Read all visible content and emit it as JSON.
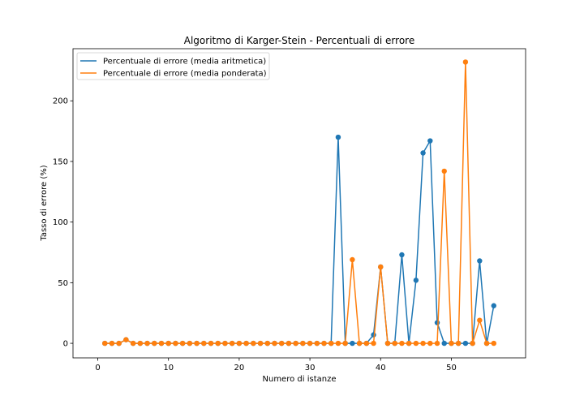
{
  "chart_data": {
    "type": "line",
    "title": "Algoritmo di Karger-Stein - Percentuali di errore",
    "xlabel": "Numero di istanze",
    "ylabel": "Tasso di errore (%)",
    "xlim": [
      -3.5,
      60.5
    ],
    "ylim": [
      -12,
      243
    ],
    "xticks": [
      0,
      10,
      20,
      30,
      40,
      50
    ],
    "yticks": [
      0,
      50,
      100,
      150,
      200
    ],
    "grid": false,
    "legend_position": "top-left",
    "x": [
      1,
      2,
      3,
      4,
      5,
      6,
      7,
      8,
      9,
      10,
      11,
      12,
      13,
      14,
      15,
      16,
      17,
      18,
      19,
      20,
      21,
      22,
      23,
      24,
      25,
      26,
      27,
      28,
      29,
      30,
      31,
      32,
      33,
      34,
      35,
      36,
      37,
      38,
      39,
      40,
      41,
      42,
      43,
      44,
      45,
      46,
      47,
      48,
      49,
      50,
      51,
      52,
      53,
      54,
      55,
      56
    ],
    "series": [
      {
        "name": "Percentuale di errore (media aritmetica)",
        "color": "#1f77b4",
        "values": [
          0,
          0,
          0,
          3,
          0,
          0,
          0,
          0,
          0,
          0,
          0,
          0,
          0,
          0,
          0,
          0,
          0,
          0,
          0,
          0,
          0,
          0,
          0,
          0,
          0,
          0,
          0,
          0,
          0,
          0,
          0,
          0,
          0,
          170,
          0,
          0,
          0,
          0,
          7,
          63,
          0,
          0,
          73,
          0,
          52,
          157,
          167,
          17,
          0,
          0,
          0,
          0,
          0,
          68,
          0,
          31
        ]
      },
      {
        "name": "Percentuale di errore (media ponderata)",
        "color": "#ff7f0e",
        "values": [
          0,
          0,
          0,
          3,
          0,
          0,
          0,
          0,
          0,
          0,
          0,
          0,
          0,
          0,
          0,
          0,
          0,
          0,
          0,
          0,
          0,
          0,
          0,
          0,
          0,
          0,
          0,
          0,
          0,
          0,
          0,
          0,
          0,
          0,
          0,
          69,
          0,
          0,
          0,
          63,
          0,
          0,
          0,
          0,
          0,
          0,
          0,
          0,
          142,
          0,
          0,
          232,
          0,
          19,
          0,
          0
        ]
      }
    ]
  }
}
